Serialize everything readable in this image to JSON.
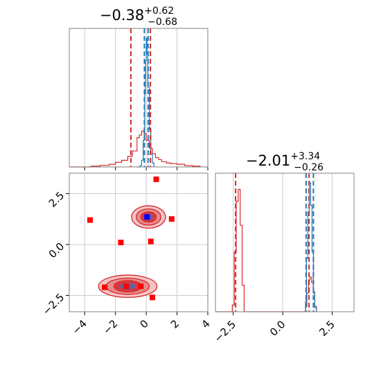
{
  "chart_data": {
    "type": "corner",
    "colors": {
      "red": "#d62728",
      "blue": "#1f77b4",
      "marker_blue": "#0000ff",
      "marker_red": "#ff0000",
      "grid": "#cccccc"
    },
    "parameters": [
      {
        "title_value": "−0.38",
        "title_upper": "+0.62",
        "title_lower": "−0.68",
        "range": [
          -5,
          4
        ]
      },
      {
        "title_value": "−2.01",
        "title_upper": "+3.34",
        "title_lower": "−0.26",
        "range": [
          -3.4,
          3.6
        ]
      }
    ],
    "panels": [
      {
        "id": "hist-param-1",
        "type": "histogram",
        "xlim": [
          -5,
          4
        ],
        "xticks": [
          -4,
          -2,
          0,
          2,
          4
        ],
        "red_steps": [
          [
            -5,
            0
          ],
          [
            -3.6,
            0.006
          ],
          [
            -3.0,
            0.012
          ],
          [
            -2.4,
            0.02
          ],
          [
            -2.0,
            0.035
          ],
          [
            -1.6,
            0.05
          ],
          [
            -1.2,
            0.08
          ],
          [
            -0.9,
            0.12
          ],
          [
            -0.6,
            0.22
          ],
          [
            -0.45,
            0.24
          ],
          [
            -0.3,
            0.27
          ],
          [
            -0.15,
            0.25
          ],
          [
            0.0,
            0.2
          ],
          [
            0.2,
            0.14
          ],
          [
            0.4,
            0.1
          ],
          [
            0.6,
            0.07
          ],
          [
            0.8,
            0.055
          ],
          [
            1.0,
            0.04
          ],
          [
            1.3,
            0.03
          ],
          [
            1.6,
            0.025
          ],
          [
            2.0,
            0.02
          ],
          [
            2.5,
            0.01
          ],
          [
            3.0,
            0.006
          ],
          [
            3.5,
            0.0
          ]
        ],
        "blue_steps": [
          [
            -0.6,
            0
          ],
          [
            -0.4,
            0.01
          ],
          [
            -0.3,
            0.05
          ],
          [
            -0.2,
            0.2
          ],
          [
            -0.1,
            0.55
          ],
          [
            -0.05,
            0.8
          ],
          [
            0.0,
            0.97
          ],
          [
            0.05,
            0.85
          ],
          [
            0.1,
            0.6
          ],
          [
            0.2,
            0.28
          ],
          [
            0.3,
            0.1
          ],
          [
            0.4,
            0.03
          ],
          [
            0.5,
            0.0
          ]
        ],
        "red_quantile_lines": [
          -1.0,
          0.27
        ],
        "blue_quantile_lines": [
          -0.12,
          0.12
        ]
      },
      {
        "id": "hist-param-2",
        "type": "histogram",
        "xlim": [
          -3.4,
          3.6
        ],
        "xticks": [
          -2.5,
          0.0,
          2.5
        ],
        "xtick_labels": [
          "−2.5",
          "0.0",
          "2.5"
        ],
        "red_steps": [
          [
            -3.4,
            0
          ],
          [
            -2.55,
            0.05
          ],
          [
            -2.45,
            0.45
          ],
          [
            -2.35,
            0.83
          ],
          [
            -2.25,
            0.92
          ],
          [
            -2.15,
            0.65
          ],
          [
            -2.05,
            0.2
          ],
          [
            -1.95,
            0.0
          ],
          [
            1.15,
            0.04
          ],
          [
            1.22,
            0.14
          ],
          [
            1.3,
            0.24
          ],
          [
            1.38,
            0.26
          ],
          [
            1.46,
            0.22
          ],
          [
            1.54,
            0.14
          ],
          [
            1.62,
            0.04
          ],
          [
            1.7,
            0.0
          ]
        ],
        "blue_steps": [
          [
            1.1,
            0.0
          ],
          [
            1.15,
            0.08
          ],
          [
            1.2,
            0.4
          ],
          [
            1.27,
            0.75
          ],
          [
            1.34,
            0.97
          ],
          [
            1.41,
            0.8
          ],
          [
            1.48,
            0.45
          ],
          [
            1.55,
            0.15
          ],
          [
            1.62,
            0.03
          ],
          [
            1.7,
            0.0
          ]
        ],
        "red_quantile_lines": [
          -2.38,
          1.33
        ],
        "blue_quantile_lines": [
          1.18,
          1.55
        ]
      },
      {
        "id": "scatter-2d",
        "type": "contour",
        "xlim": [
          -5,
          4
        ],
        "ylim": [
          -3.3,
          3.5
        ],
        "xticks": [
          -4,
          -2,
          0,
          2,
          4
        ],
        "yticks": [
          -2.5,
          0.0,
          2.5
        ],
        "ytick_labels": [
          "−2.5",
          "0.0",
          "2.5"
        ],
        "red_points": [
          [
            0.65,
            3.2
          ],
          [
            -3.65,
            1.2
          ],
          [
            -1.65,
            0.1
          ],
          [
            0.3,
            0.15
          ],
          [
            1.65,
            1.25
          ],
          [
            -2.7,
            -2.1
          ],
          [
            -1.3,
            -2.05
          ],
          [
            -0.35,
            -2.05
          ],
          [
            0.4,
            -2.6
          ]
        ],
        "blue_points": [
          [
            0.05,
            1.35
          ]
        ],
        "contour_clusters": [
          {
            "cx": 0.15,
            "cy": 1.35,
            "rx": [
              1.1,
              0.8,
              0.5
            ],
            "ry": [
              0.55,
              0.4,
              0.25
            ]
          },
          {
            "cx": -1.2,
            "cy": -2.05,
            "rx": [
              1.9,
              1.4,
              0.9
            ],
            "ry": [
              0.55,
              0.4,
              0.28
            ]
          }
        ]
      }
    ]
  }
}
